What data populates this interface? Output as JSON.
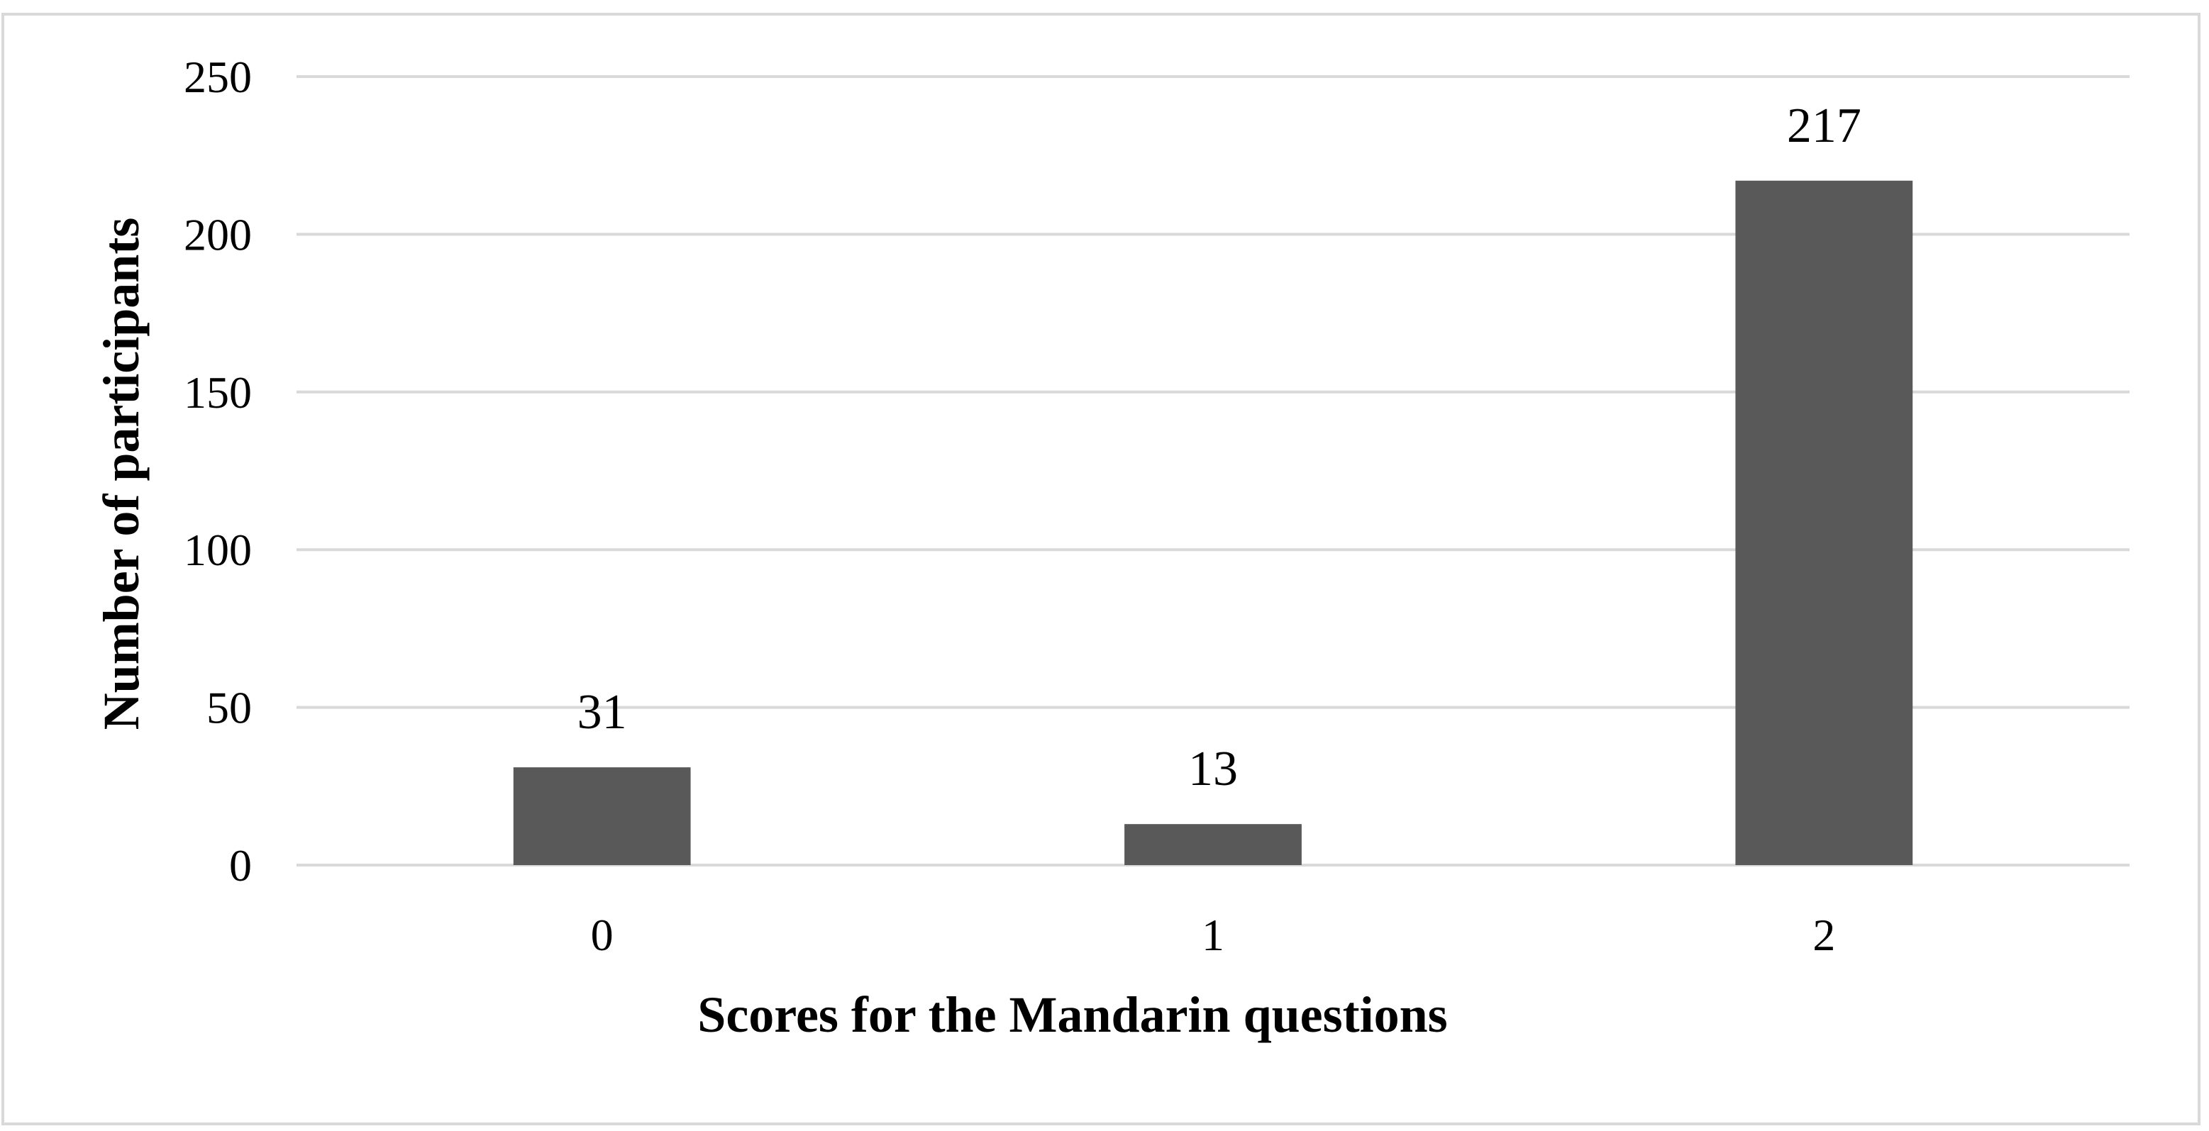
{
  "chart_data": {
    "type": "bar",
    "categories": [
      "0",
      "1",
      "2"
    ],
    "values": [
      31,
      13,
      217
    ],
    "data_labels": [
      "31",
      "13",
      "217"
    ],
    "xlabel": "Scores for the Mandarin questions",
    "ylabel": "Number of participants",
    "ylim": [
      0,
      250
    ],
    "yticks": [
      "0",
      "50",
      "100",
      "150",
      "200",
      "250"
    ],
    "grid": true,
    "legend": "none",
    "bar_color": "#595959",
    "grid_color": "#d9d9d9"
  }
}
